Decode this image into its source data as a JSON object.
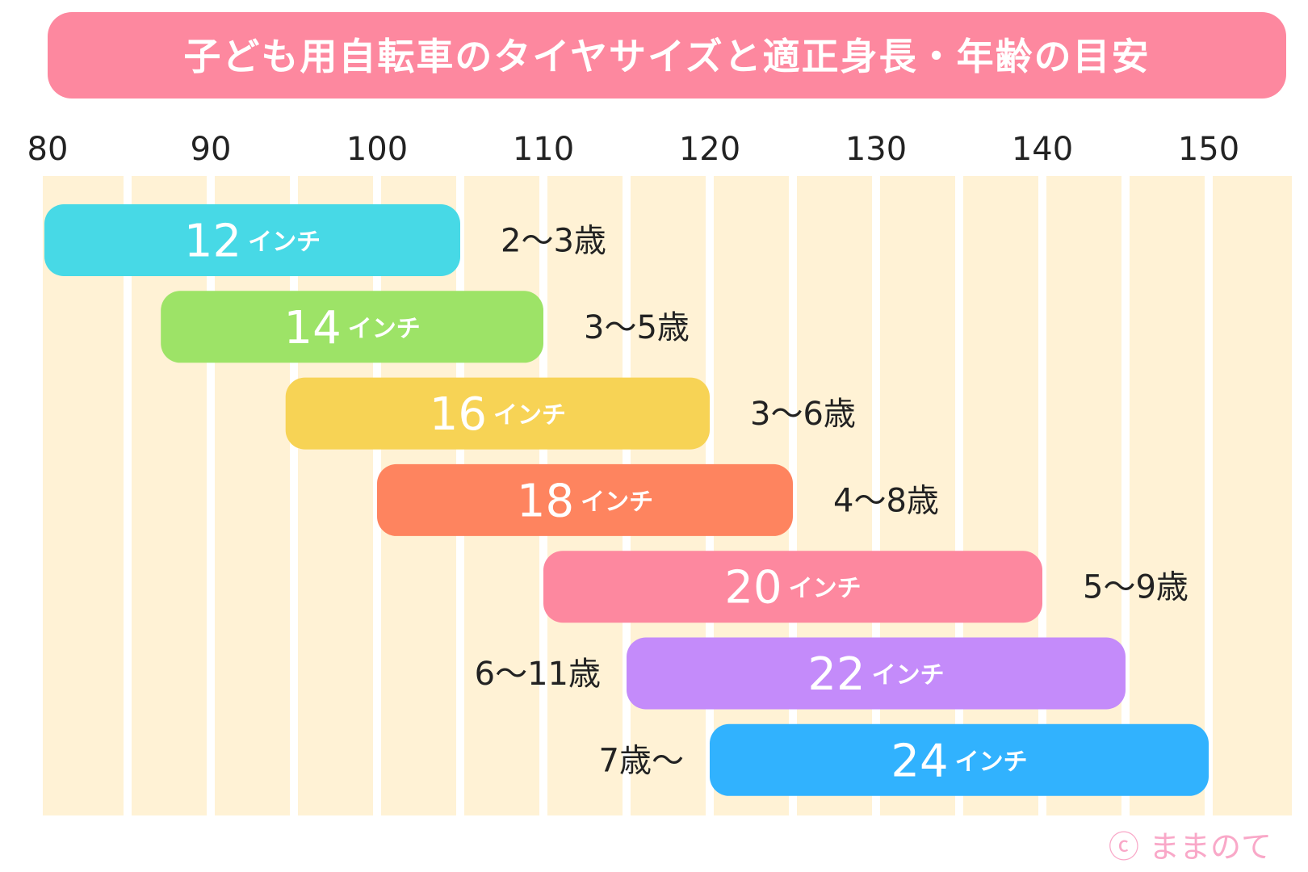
{
  "chart_data": {
    "type": "bar",
    "orientation": "horizontal-range",
    "title": "子ども用自転車のタイヤサイズと適正身長・年齢の目安",
    "xlabel": "",
    "ylabel": "",
    "xlim": [
      80,
      155
    ],
    "x_ticks": [
      80,
      90,
      100,
      110,
      120,
      130,
      140,
      150
    ],
    "grid": "vertical bands every 5",
    "unit_label": "インチ",
    "series": [
      {
        "size": "12",
        "start": 80,
        "end": 105,
        "age": "2〜3歳",
        "age_side": "right",
        "color": "#47d9e6"
      },
      {
        "size": "14",
        "start": 87,
        "end": 110,
        "age": "3〜5歳",
        "age_side": "right",
        "color": "#9de367"
      },
      {
        "size": "16",
        "start": 94.5,
        "end": 120,
        "age": "3〜6歳",
        "age_side": "right",
        "color": "#f7d355"
      },
      {
        "size": "18",
        "start": 100,
        "end": 125,
        "age": "4〜8歳",
        "age_side": "right",
        "color": "#fe845f"
      },
      {
        "size": "20",
        "start": 110,
        "end": 140,
        "age": "5〜9歳",
        "age_side": "right",
        "color": "#fd889f"
      },
      {
        "size": "22",
        "start": 115,
        "end": 145,
        "age": "6〜11歳",
        "age_side": "left",
        "color": "#c48bfa"
      },
      {
        "size": "24",
        "start": 120,
        "end": 150,
        "age": "7歳〜",
        "age_side": "left",
        "color": "#31b2fe"
      }
    ]
  },
  "colors": {
    "title_bg": "#fd889f",
    "band": "#fff2d5",
    "text": "#222222",
    "credit": "#f9a8c8"
  },
  "credit": "ⓒ ままのて"
}
